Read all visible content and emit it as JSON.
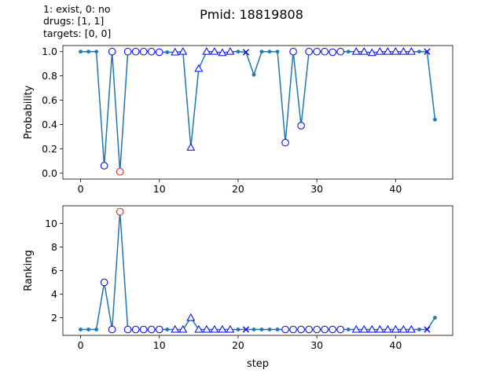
{
  "header": {
    "title": "Pmid: 18819808",
    "legend_line1": "1: exist,    0: no",
    "legend_line2": "drugs: [1, 1]",
    "legend_line3": "targets: [0, 0]"
  },
  "chart_data": [
    {
      "type": "line",
      "ylabel": "Probability",
      "xlim": [
        -2.25,
        47.25
      ],
      "ylim": [
        -0.05,
        1.05
      ],
      "x_ticks": [
        0,
        10,
        20,
        30,
        40
      ],
      "y_ticks": [
        0.0,
        0.2,
        0.4,
        0.6,
        0.8,
        1.0
      ],
      "y_tick_labels": [
        "0.0",
        "0.2",
        "0.4",
        "0.6",
        "0.8",
        "1.0"
      ],
      "line_color": "#1f77b4",
      "x": [
        0,
        1,
        2,
        3,
        4,
        5,
        6,
        7,
        8,
        9,
        10,
        11,
        12,
        13,
        14,
        15,
        16,
        17,
        18,
        19,
        20,
        21,
        22,
        23,
        24,
        25,
        26,
        27,
        28,
        29,
        30,
        31,
        32,
        33,
        34,
        35,
        36,
        37,
        38,
        39,
        40,
        41,
        42,
        43,
        44,
        45
      ],
      "values": [
        1.0,
        1.0,
        1.0,
        0.06,
        1.0,
        0.01,
        1.0,
        1.0,
        1.0,
        1.0,
        0.995,
        0.995,
        0.995,
        1.0,
        0.21,
        0.86,
        1.0,
        1.0,
        0.99,
        1.0,
        1.0,
        0.995,
        0.81,
        1.0,
        1.0,
        1.0,
        0.25,
        1.0,
        0.39,
        1.0,
        1.0,
        1.0,
        0.995,
        1.0,
        1.0,
        1.0,
        1.0,
        0.99,
        1.0,
        1.0,
        1.0,
        1.0,
        1.0,
        1.0,
        1.0,
        0.44
      ],
      "markers": [
        "dot",
        "dot",
        "dot",
        "circle",
        "circle",
        "circle-red",
        "circle",
        "circle",
        "circle",
        "circle",
        "circle",
        "dot",
        "triangle",
        "triangle",
        "triangle",
        "triangle",
        "triangle",
        "triangle",
        "triangle",
        "triangle",
        "dot",
        "x",
        "dot",
        "dot",
        "dot",
        "dot",
        "circle",
        "circle",
        "circle",
        "circle",
        "circle",
        "circle",
        "circle",
        "circle",
        "dot",
        "triangle",
        "triangle",
        "triangle",
        "triangle",
        "triangle",
        "triangle",
        "triangle",
        "triangle",
        "dot",
        "x",
        "dot"
      ]
    },
    {
      "type": "line",
      "ylabel": "Ranking",
      "xlabel": "step",
      "xlim": [
        -2.25,
        47.25
      ],
      "ylim": [
        0.5,
        11.5
      ],
      "x_ticks": [
        0,
        10,
        20,
        30,
        40
      ],
      "y_ticks": [
        2,
        4,
        6,
        8,
        10
      ],
      "y_tick_labels": [
        "2",
        "4",
        "6",
        "8",
        "10"
      ],
      "line_color": "#1f77b4",
      "x": [
        0,
        1,
        2,
        3,
        4,
        5,
        6,
        7,
        8,
        9,
        10,
        11,
        12,
        13,
        14,
        15,
        16,
        17,
        18,
        19,
        20,
        21,
        22,
        23,
        24,
        25,
        26,
        27,
        28,
        29,
        30,
        31,
        32,
        33,
        34,
        35,
        36,
        37,
        38,
        39,
        40,
        41,
        42,
        43,
        44,
        45
      ],
      "values": [
        1,
        1,
        1,
        5,
        1,
        11,
        1,
        1,
        1,
        1,
        1,
        1,
        1,
        1,
        2,
        1,
        1,
        1,
        1,
        1,
        1,
        1,
        1,
        1,
        1,
        1,
        1,
        1,
        1,
        1,
        1,
        1,
        1,
        1,
        1,
        1,
        1,
        1,
        1,
        1,
        1,
        1,
        1,
        1,
        1,
        2
      ],
      "markers": [
        "dot",
        "dot",
        "dot",
        "circle",
        "circle",
        "circle-red",
        "circle",
        "circle",
        "circle",
        "circle",
        "circle",
        "dot",
        "triangle",
        "triangle",
        "triangle",
        "triangle",
        "triangle",
        "triangle",
        "triangle",
        "triangle",
        "dot",
        "x",
        "dot",
        "dot",
        "dot",
        "dot",
        "circle",
        "circle",
        "circle",
        "circle",
        "circle",
        "circle",
        "circle",
        "circle",
        "dot",
        "triangle",
        "triangle",
        "triangle",
        "triangle",
        "triangle",
        "triangle",
        "triangle",
        "triangle",
        "dot",
        "x",
        "dot"
      ]
    }
  ]
}
